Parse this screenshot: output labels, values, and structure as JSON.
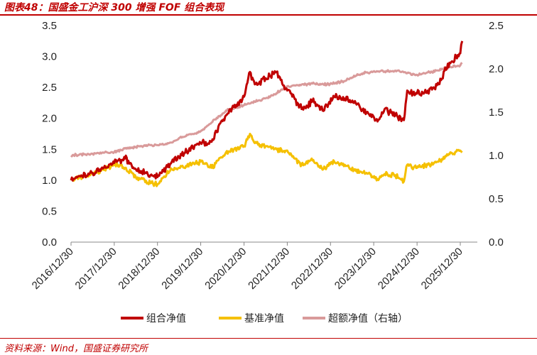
{
  "header": {
    "title": "图表48：国盛金工沪深 300 增强 FOF 组合表现"
  },
  "footer": {
    "source": "资料来源：Wind，国盛证券研究所"
  },
  "colors": {
    "accent": "#c00000",
    "portfolio": "#c00000",
    "benchmark": "#f5c000",
    "excess": "#d99a9a",
    "text": "#222222"
  },
  "chart_data": {
    "type": "line",
    "title": "",
    "x_ticks": [
      "2016/12/30",
      "2017/12/30",
      "2018/12/30",
      "2019/12/30",
      "2020/12/30",
      "2021/12/30",
      "2022/12/30",
      "2023/12/30",
      "2024/12/30",
      "2025/12/30"
    ],
    "y_left": {
      "range": [
        0,
        3.5
      ],
      "ticks": [
        "0.0",
        "0.5",
        "1.0",
        "1.5",
        "2.0",
        "2.5",
        "3.0",
        "3.5"
      ]
    },
    "y_right": {
      "range": [
        0,
        2.5
      ],
      "ticks": [
        "0.0",
        "0.5",
        "1.0",
        "1.5",
        "2.0",
        "2.5"
      ]
    },
    "legend_position": "bottom",
    "series": [
      {
        "name": "组合净值",
        "axis": "left",
        "color": "#c00000",
        "x": [
          "2016/12/30",
          "2017/06/30",
          "2017/12/30",
          "2018/03/31",
          "2018/06/30",
          "2018/10/31",
          "2018/12/30",
          "2019/04/30",
          "2019/06/30",
          "2019/12/30",
          "2020/03/31",
          "2020/07/31",
          "2020/12/30",
          "2021/02/18",
          "2021/03/31",
          "2021/06/30",
          "2021/09/30",
          "2021/12/30",
          "2022/04/30",
          "2022/07/31",
          "2022/10/31",
          "2023/01/31",
          "2023/04/30",
          "2023/07/31",
          "2023/10/31",
          "2024/01/31",
          "2024/03/31",
          "2024/06/30",
          "2024/09/10",
          "2024/10/08",
          "2024/12/30",
          "2025/03/31",
          "2025/06/30",
          "2025/09/30",
          "2025/12/30",
          "2026/01/15"
        ],
        "values": [
          1.0,
          1.12,
          1.28,
          1.35,
          1.18,
          1.08,
          1.05,
          1.3,
          1.38,
          1.6,
          1.62,
          2.05,
          2.35,
          2.75,
          2.55,
          2.65,
          2.75,
          2.45,
          2.15,
          2.28,
          2.12,
          2.35,
          2.32,
          2.25,
          2.1,
          1.95,
          2.15,
          2.05,
          1.97,
          2.45,
          2.4,
          2.45,
          2.55,
          2.9,
          3.05,
          3.25
        ]
      },
      {
        "name": "基准净值",
        "axis": "left",
        "color": "#f5c000",
        "x": [
          "2016/12/30",
          "2017/06/30",
          "2017/12/30",
          "2018/03/31",
          "2018/06/30",
          "2018/10/31",
          "2018/12/30",
          "2019/04/30",
          "2019/06/30",
          "2019/12/30",
          "2020/03/31",
          "2020/07/31",
          "2020/12/30",
          "2021/02/18",
          "2021/03/31",
          "2021/06/30",
          "2021/09/30",
          "2021/12/30",
          "2022/04/30",
          "2022/07/31",
          "2022/10/31",
          "2023/01/31",
          "2023/04/30",
          "2023/07/31",
          "2023/10/31",
          "2024/01/31",
          "2024/03/31",
          "2024/06/30",
          "2024/09/10",
          "2024/10/08",
          "2024/12/30",
          "2025/03/31",
          "2025/06/30",
          "2025/09/30",
          "2025/12/30",
          "2026/01/15"
        ],
        "values": [
          1.0,
          1.1,
          1.25,
          1.2,
          1.05,
          0.95,
          0.93,
          1.18,
          1.2,
          1.3,
          1.2,
          1.45,
          1.55,
          1.75,
          1.6,
          1.55,
          1.5,
          1.48,
          1.25,
          1.32,
          1.18,
          1.3,
          1.25,
          1.15,
          1.12,
          1.02,
          1.1,
          1.08,
          0.98,
          1.25,
          1.2,
          1.25,
          1.3,
          1.42,
          1.48,
          1.45
        ]
      },
      {
        "name": "超额净值（右轴）",
        "axis": "right",
        "color": "#d99a9a",
        "x": [
          "2016/12/30",
          "2017/06/30",
          "2017/12/30",
          "2018/03/31",
          "2018/06/30",
          "2018/10/31",
          "2018/12/30",
          "2019/04/30",
          "2019/06/30",
          "2019/12/30",
          "2020/03/31",
          "2020/07/31",
          "2020/12/30",
          "2021/02/18",
          "2021/03/31",
          "2021/06/30",
          "2021/09/30",
          "2021/12/30",
          "2022/04/30",
          "2022/07/31",
          "2022/10/31",
          "2023/01/31",
          "2023/04/30",
          "2023/07/31",
          "2023/10/31",
          "2024/01/31",
          "2024/03/31",
          "2024/06/30",
          "2024/09/10",
          "2024/10/08",
          "2024/12/30",
          "2025/03/31",
          "2025/06/30",
          "2025/09/30",
          "2025/12/30",
          "2026/01/15"
        ],
        "values": [
          1.0,
          1.02,
          1.04,
          1.08,
          1.1,
          1.12,
          1.12,
          1.15,
          1.2,
          1.28,
          1.38,
          1.52,
          1.58,
          1.6,
          1.62,
          1.66,
          1.72,
          1.8,
          1.82,
          1.83,
          1.82,
          1.83,
          1.86,
          1.92,
          1.96,
          1.97,
          1.97,
          1.98,
          1.96,
          1.95,
          1.93,
          1.96,
          1.98,
          2.02,
          2.04,
          2.07
        ]
      }
    ]
  }
}
